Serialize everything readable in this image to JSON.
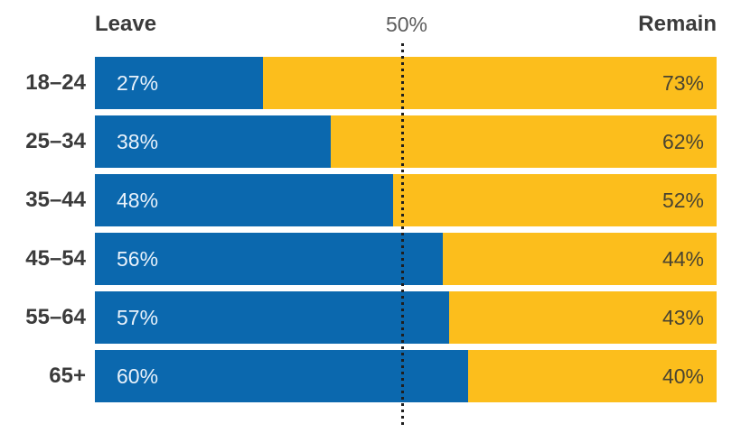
{
  "chart_data": {
    "type": "bar",
    "orientation": "horizontal",
    "stacked": true,
    "title": "",
    "categories": [
      "18–24",
      "25–34",
      "35–44",
      "45–54",
      "55–64",
      "65+"
    ],
    "series": [
      {
        "name": "Leave",
        "values": [
          27,
          38,
          48,
          56,
          57,
          60
        ]
      },
      {
        "name": "Remain",
        "values": [
          73,
          62,
          52,
          44,
          43,
          40
        ]
      }
    ],
    "unit": "%",
    "xlim": [
      0,
      100
    ],
    "reference_line": {
      "value": 50,
      "label": "50%",
      "style": "dotted-vertical"
    },
    "legend_position": "top",
    "grid": false,
    "value_labels": {
      "leave": [
        "27%",
        "38%",
        "48%",
        "56%",
        "57%",
        "60%"
      ],
      "remain": [
        "73%",
        "62%",
        "52%",
        "44%",
        "43%",
        "40%"
      ]
    }
  },
  "header": {
    "leave_label": "Leave",
    "center_label": "50%",
    "remain_label": "Remain"
  },
  "colors": {
    "leave_bar": "#0b68ae",
    "remain_bar": "#fcbe1c",
    "leave_value_text": "#e9f2fb",
    "remain_value_text": "#4a4431",
    "axis_text": "#3b3b3b",
    "center_label_text": "#5c5c5c",
    "reference_line": "#1f1f1f",
    "background": "#ffffff"
  }
}
